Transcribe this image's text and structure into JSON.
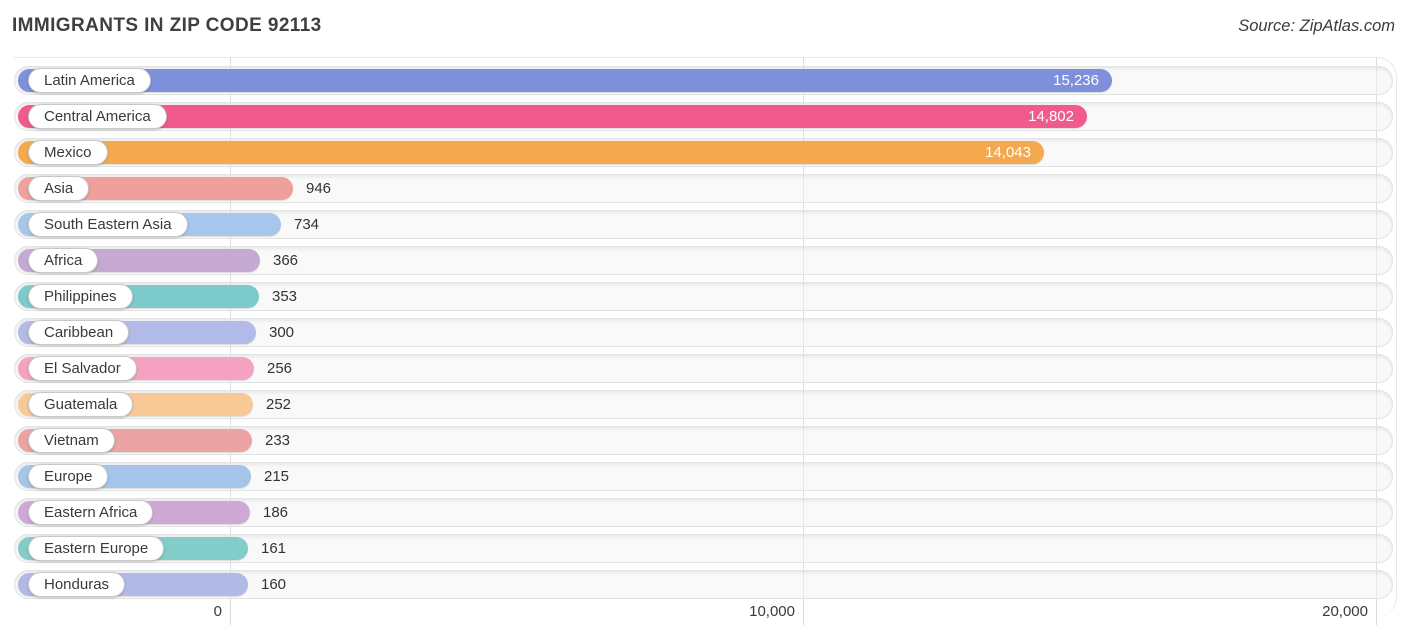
{
  "chart_data": {
    "type": "bar",
    "orientation": "horizontal",
    "title": "IMMIGRANTS IN ZIP CODE 92113",
    "source": "Source: ZipAtlas.com",
    "xlabel": "",
    "ylabel": "",
    "x_axis": {
      "min": 0,
      "max": 20000,
      "gridlines": true,
      "ticks": [
        {
          "label": "0",
          "value": 0
        },
        {
          "label": "10,000",
          "value": 10000
        },
        {
          "label": "20,000",
          "value": 20000
        }
      ]
    },
    "legend": "none",
    "series": [
      {
        "category": "Latin America",
        "value": 15236,
        "value_label": "15,236",
        "color": "#7e90dc"
      },
      {
        "category": "Central America",
        "value": 14802,
        "value_label": "14,802",
        "color": "#f05a8c"
      },
      {
        "category": "Mexico",
        "value": 14043,
        "value_label": "14,043",
        "color": "#f5a94f"
      },
      {
        "category": "Asia",
        "value": 946,
        "value_label": "946",
        "color": "#efa09b"
      },
      {
        "category": "South Eastern Asia",
        "value": 734,
        "value_label": "734",
        "color": "#a6c7eb"
      },
      {
        "category": "Africa",
        "value": 366,
        "value_label": "366",
        "color": "#c5a9d2"
      },
      {
        "category": "Philippines",
        "value": 353,
        "value_label": "353",
        "color": "#7ccbca"
      },
      {
        "category": "Caribbean",
        "value": 300,
        "value_label": "300",
        "color": "#b2bae8"
      },
      {
        "category": "El Salvador",
        "value": 256,
        "value_label": "256",
        "color": "#f5a2c2"
      },
      {
        "category": "Guatemala",
        "value": 252,
        "value_label": "252",
        "color": "#f8c897"
      },
      {
        "category": "Vietnam",
        "value": 233,
        "value_label": "233",
        "color": "#eba3a3"
      },
      {
        "category": "Europe",
        "value": 215,
        "value_label": "215",
        "color": "#a4c5e9"
      },
      {
        "category": "Eastern Africa",
        "value": 186,
        "value_label": "186",
        "color": "#cfa9d6"
      },
      {
        "category": "Eastern Europe",
        "value": 161,
        "value_label": "161",
        "color": "#82ccc9"
      },
      {
        "category": "Honduras",
        "value": 160,
        "value_label": "160",
        "color": "#b1b9e7"
      }
    ]
  }
}
